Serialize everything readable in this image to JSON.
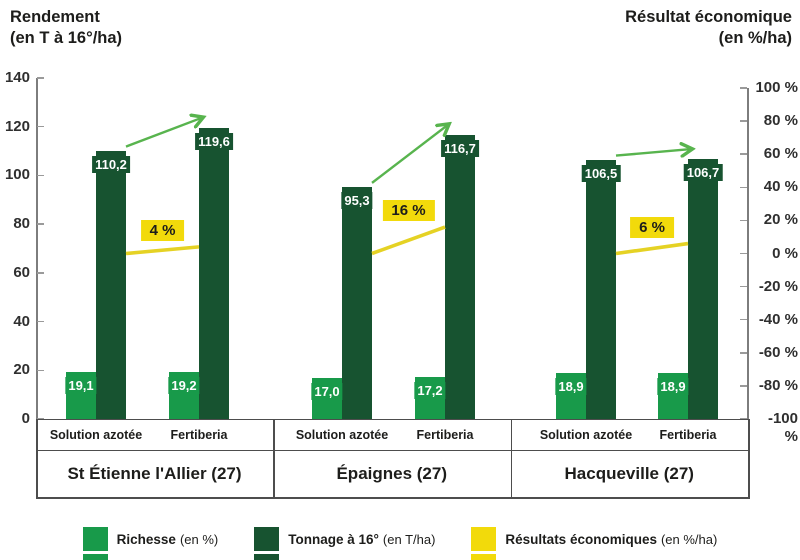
{
  "title_left": {
    "line1": "Rendement",
    "line2": "(en T à 16°/ha)"
  },
  "title_right": {
    "line1": "Résultat économique",
    "line2": "(en %/ha)"
  },
  "colors": {
    "richesse": "#189a4a",
    "tonnage": "#175330",
    "eco_badge": "#f2da0b",
    "eco_line": "#e5d224",
    "arrow": "#58b44e",
    "axis": "#7d7d7d",
    "tick": "#9a9a9a",
    "table_border": "#4d4d4d",
    "text": "#1d1d1b"
  },
  "chart_data": {
    "type": "bar",
    "left_axis": {
      "title": "Rendement (en T à 16°/ha)",
      "min": 0,
      "max": 140,
      "step": 20,
      "tick_labels": [
        "140",
        "120",
        "100",
        "80",
        "60",
        "40",
        "20",
        "0"
      ]
    },
    "right_axis": {
      "title": "Résultat économique (en %/ha)",
      "min": -100,
      "max": 100,
      "step": 20,
      "tick_labels": [
        "100 %",
        "80 %",
        "60 %",
        "40 %",
        "20 %",
        "0 %",
        "-20 %",
        "-40 %",
        "-60 %",
        "-80 %",
        "-100 %"
      ]
    },
    "series_names": [
      "Richesse (en %)",
      "Tonnage à 16° (en T/ha)",
      "Résultats économiques (en %/ha)"
    ],
    "grid": false,
    "legend_position": "bottom",
    "groups": [
      {
        "location": "St Étienne l'Allier (27)",
        "eco_value": 4,
        "eco_label": "4 %",
        "bars": [
          {
            "condition": "Solution azotée",
            "richesse": 19.1,
            "richesse_label": "19,1",
            "tonnage": 110.2,
            "tonnage_label": "110,2"
          },
          {
            "condition": "Fertiberia",
            "richesse": 19.2,
            "richesse_label": "19,2",
            "tonnage": 119.6,
            "tonnage_label": "119,6"
          }
        ]
      },
      {
        "location": "Épaignes (27)",
        "eco_value": 16,
        "eco_label": "16 %",
        "bars": [
          {
            "condition": "Solution azotée",
            "richesse": 17.0,
            "richesse_label": "17,0",
            "tonnage": 95.3,
            "tonnage_label": "95,3"
          },
          {
            "condition": "Fertiberia",
            "richesse": 17.2,
            "richesse_label": "17,2",
            "tonnage": 116.7,
            "tonnage_label": "116,7"
          }
        ]
      },
      {
        "location": "Hacqueville (27)",
        "eco_value": 6,
        "eco_label": "6 %",
        "bars": [
          {
            "condition": "Solution azotée",
            "richesse": 18.9,
            "richesse_label": "18,9",
            "tonnage": 106.5,
            "tonnage_label": "106,5"
          },
          {
            "condition": "Fertiberia",
            "richesse": 18.9,
            "richesse_label": "18,9",
            "tonnage": 106.7,
            "tonnage_label": "106,7"
          }
        ]
      }
    ],
    "legend": [
      {
        "name": "Richesse",
        "unit": "(en %)",
        "color_key": "richesse"
      },
      {
        "name": "Tonnage à 16°",
        "unit": "(en T/ha)",
        "color_key": "tonnage"
      },
      {
        "name": "Résultats économiques",
        "unit": "(en %/ha)",
        "color_key": "eco_badge"
      }
    ]
  }
}
